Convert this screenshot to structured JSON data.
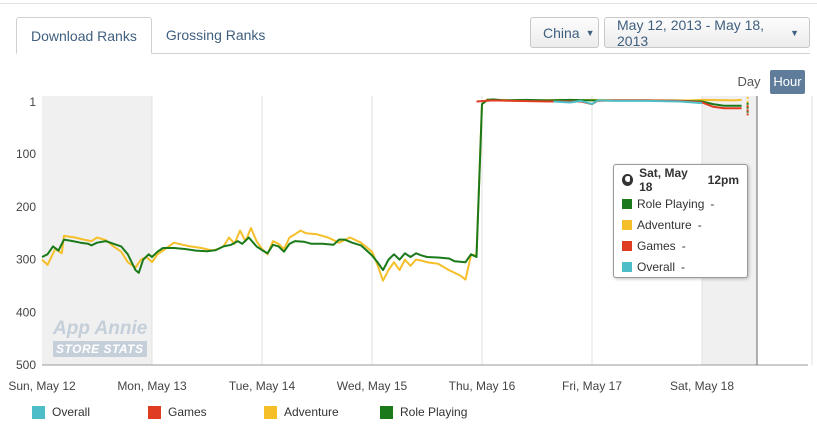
{
  "tabs": [
    {
      "label": "Download Ranks",
      "active": true
    },
    {
      "label": "Grossing Ranks",
      "active": false
    }
  ],
  "filters": {
    "country": "China",
    "date_range": "May 12, 2013 - May 18, 2013"
  },
  "granularity": {
    "day_label": "Day",
    "hour_label": "Hour",
    "selected": "Hour"
  },
  "watermark": {
    "line1": "App Annie",
    "line2": "STORE STATS"
  },
  "tooltip": {
    "date": "Sat, May 18",
    "hour": "12pm",
    "rows": [
      {
        "name": "Role Playing",
        "value": "-",
        "color": "#1a7a1a"
      },
      {
        "name": "Adventure",
        "value": "-",
        "color": "#f5bf2a"
      },
      {
        "name": "Games",
        "value": "-",
        "color": "#e03c22"
      },
      {
        "name": "Overall",
        "value": "-",
        "color": "#4dbdc8"
      }
    ]
  },
  "chart_data": {
    "type": "line",
    "x_tick_labels": [
      "Sun, May 12",
      "Mon, May 13",
      "Tue, May 14",
      "Wed, May 15",
      "Thu, May 16",
      "Fri, May 17",
      "Sat, May 18"
    ],
    "y_tick_labels": [
      "1",
      "100",
      "200",
      "300",
      "400",
      "500"
    ],
    "ylim": [
      1,
      500
    ],
    "y_inverted": true,
    "x_unit": "days since Sun, May 12 00:00",
    "xlim": [
      0,
      7
    ],
    "series": [
      {
        "name": "Adventure",
        "color": "#f5bf2a",
        "points": [
          [
            0,
            300
          ],
          [
            0.05,
            310
          ],
          [
            0.12,
            280
          ],
          [
            0.18,
            288
          ],
          [
            0.2,
            255
          ],
          [
            0.3,
            258
          ],
          [
            0.38,
            262
          ],
          [
            0.45,
            265
          ],
          [
            0.5,
            258
          ],
          [
            0.58,
            263
          ],
          [
            0.65,
            275
          ],
          [
            0.72,
            285
          ],
          [
            0.78,
            305
          ],
          [
            0.85,
            315
          ],
          [
            0.9,
            300
          ],
          [
            0.95,
            295
          ],
          [
            1.0,
            305
          ],
          [
            1.05,
            290
          ],
          [
            1.12,
            280
          ],
          [
            1.2,
            268
          ],
          [
            1.28,
            272
          ],
          [
            1.35,
            275
          ],
          [
            1.45,
            278
          ],
          [
            1.55,
            283
          ],
          [
            1.6,
            280
          ],
          [
            1.65,
            275
          ],
          [
            1.7,
            258
          ],
          [
            1.75,
            270
          ],
          [
            1.8,
            245
          ],
          [
            1.85,
            265
          ],
          [
            1.9,
            240
          ],
          [
            1.95,
            265
          ],
          [
            2.0,
            280
          ],
          [
            2.05,
            290
          ],
          [
            2.1,
            265
          ],
          [
            2.15,
            270
          ],
          [
            2.2,
            280
          ],
          [
            2.25,
            258
          ],
          [
            2.3,
            252
          ],
          [
            2.35,
            245
          ],
          [
            2.4,
            250
          ],
          [
            2.5,
            252
          ],
          [
            2.6,
            258
          ],
          [
            2.7,
            268
          ],
          [
            2.8,
            258
          ],
          [
            2.9,
            268
          ],
          [
            3.0,
            285
          ],
          [
            3.05,
            310
          ],
          [
            3.1,
            340
          ],
          [
            3.15,
            320
          ],
          [
            3.2,
            305
          ],
          [
            3.25,
            320
          ],
          [
            3.3,
            300
          ],
          [
            3.35,
            312
          ],
          [
            3.4,
            300
          ],
          [
            3.45,
            302
          ],
          [
            3.5,
            305
          ],
          [
            3.6,
            308
          ],
          [
            3.7,
            320
          ],
          [
            3.8,
            330
          ],
          [
            3.85,
            338
          ],
          [
            3.9,
            292
          ],
          [
            3.95,
            290
          ],
          [
            4.0,
            5
          ],
          [
            4.05,
            -5
          ],
          [
            4.1,
            -2
          ],
          [
            4.2,
            -3
          ],
          [
            4.3,
            -1
          ],
          [
            4.5,
            -2
          ],
          [
            4.7,
            -3
          ],
          [
            4.9,
            -2
          ],
          [
            5.0,
            -3
          ],
          [
            5.2,
            -2
          ],
          [
            5.5,
            -2
          ],
          [
            5.9,
            -2
          ],
          [
            6.0,
            -3
          ],
          [
            6.3,
            -2
          ],
          [
            6.36,
            -3
          ]
        ]
      },
      {
        "name": "Role Playing",
        "color": "#1a7a1a",
        "points": [
          [
            0,
            295
          ],
          [
            0.05,
            290
          ],
          [
            0.1,
            275
          ],
          [
            0.15,
            283
          ],
          [
            0.2,
            262
          ],
          [
            0.28,
            265
          ],
          [
            0.35,
            268
          ],
          [
            0.42,
            270
          ],
          [
            0.45,
            273
          ],
          [
            0.5,
            268
          ],
          [
            0.58,
            265
          ],
          [
            0.65,
            270
          ],
          [
            0.72,
            275
          ],
          [
            0.78,
            290
          ],
          [
            0.85,
            320
          ],
          [
            0.88,
            325
          ],
          [
            0.92,
            300
          ],
          [
            0.97,
            290
          ],
          [
            1.0,
            295
          ],
          [
            1.05,
            285
          ],
          [
            1.1,
            278
          ],
          [
            1.2,
            278
          ],
          [
            1.3,
            280
          ],
          [
            1.4,
            283
          ],
          [
            1.5,
            284
          ],
          [
            1.58,
            282
          ],
          [
            1.65,
            275
          ],
          [
            1.72,
            272
          ],
          [
            1.78,
            265
          ],
          [
            1.82,
            270
          ],
          [
            1.88,
            258
          ],
          [
            1.95,
            275
          ],
          [
            2.0,
            282
          ],
          [
            2.05,
            288
          ],
          [
            2.1,
            272
          ],
          [
            2.15,
            275
          ],
          [
            2.2,
            285
          ],
          [
            2.25,
            270
          ],
          [
            2.3,
            265
          ],
          [
            2.38,
            266
          ],
          [
            2.45,
            270
          ],
          [
            2.55,
            270
          ],
          [
            2.65,
            272
          ],
          [
            2.7,
            262
          ],
          [
            2.75,
            262
          ],
          [
            2.82,
            268
          ],
          [
            2.9,
            273
          ],
          [
            3.0,
            292
          ],
          [
            3.05,
            305
          ],
          [
            3.1,
            320
          ],
          [
            3.15,
            300
          ],
          [
            3.2,
            290
          ],
          [
            3.25,
            300
          ],
          [
            3.3,
            288
          ],
          [
            3.35,
            295
          ],
          [
            3.4,
            288
          ],
          [
            3.45,
            292
          ],
          [
            3.5,
            295
          ],
          [
            3.6,
            296
          ],
          [
            3.7,
            298
          ],
          [
            3.75,
            303
          ],
          [
            3.85,
            305
          ],
          [
            3.9,
            290
          ],
          [
            3.95,
            295
          ],
          [
            4.0,
            5
          ],
          [
            4.05,
            -3
          ],
          [
            4.1,
            -4
          ],
          [
            4.2,
            -2
          ],
          [
            4.4,
            -3
          ],
          [
            4.6,
            -2
          ],
          [
            4.8,
            -3
          ],
          [
            5.0,
            -2
          ],
          [
            5.2,
            -2
          ],
          [
            5.5,
            -2
          ],
          [
            5.8,
            -1
          ],
          [
            6.0,
            0
          ],
          [
            6.1,
            5
          ],
          [
            6.2,
            8
          ],
          [
            6.36,
            8
          ]
        ]
      },
      {
        "name": "Games",
        "color": "#e03c22",
        "points": [
          [
            3.95,
            0
          ],
          [
            4.1,
            -2
          ],
          [
            4.3,
            -1
          ],
          [
            4.6,
            0
          ],
          [
            4.9,
            0
          ],
          [
            5.0,
            5
          ],
          [
            5.05,
            -1
          ],
          [
            5.2,
            -2
          ],
          [
            5.5,
            -2
          ],
          [
            5.8,
            -1
          ],
          [
            6.0,
            2
          ],
          [
            6.1,
            10
          ],
          [
            6.2,
            13
          ],
          [
            6.36,
            13
          ]
        ]
      },
      {
        "name": "Overall",
        "color": "#4dbdc8",
        "points": [
          [
            4.65,
            0
          ],
          [
            4.8,
            2
          ],
          [
            4.9,
            -1
          ],
          [
            5.0,
            5
          ],
          [
            5.05,
            -2
          ],
          [
            5.2,
            -1
          ],
          [
            5.5,
            -1
          ],
          [
            5.8,
            0
          ],
          [
            6.0,
            3
          ]
        ]
      }
    ],
    "legend": [
      "Overall",
      "Games",
      "Adventure",
      "Role Playing"
    ],
    "legend_placement": "bottom-left"
  },
  "legend_items": [
    {
      "name": "Overall",
      "color": "#4dbdc8"
    },
    {
      "name": "Games",
      "color": "#e03c22"
    },
    {
      "name": "Adventure",
      "color": "#f5bf2a"
    },
    {
      "name": "Role Playing",
      "color": "#1a7a1a"
    }
  ]
}
